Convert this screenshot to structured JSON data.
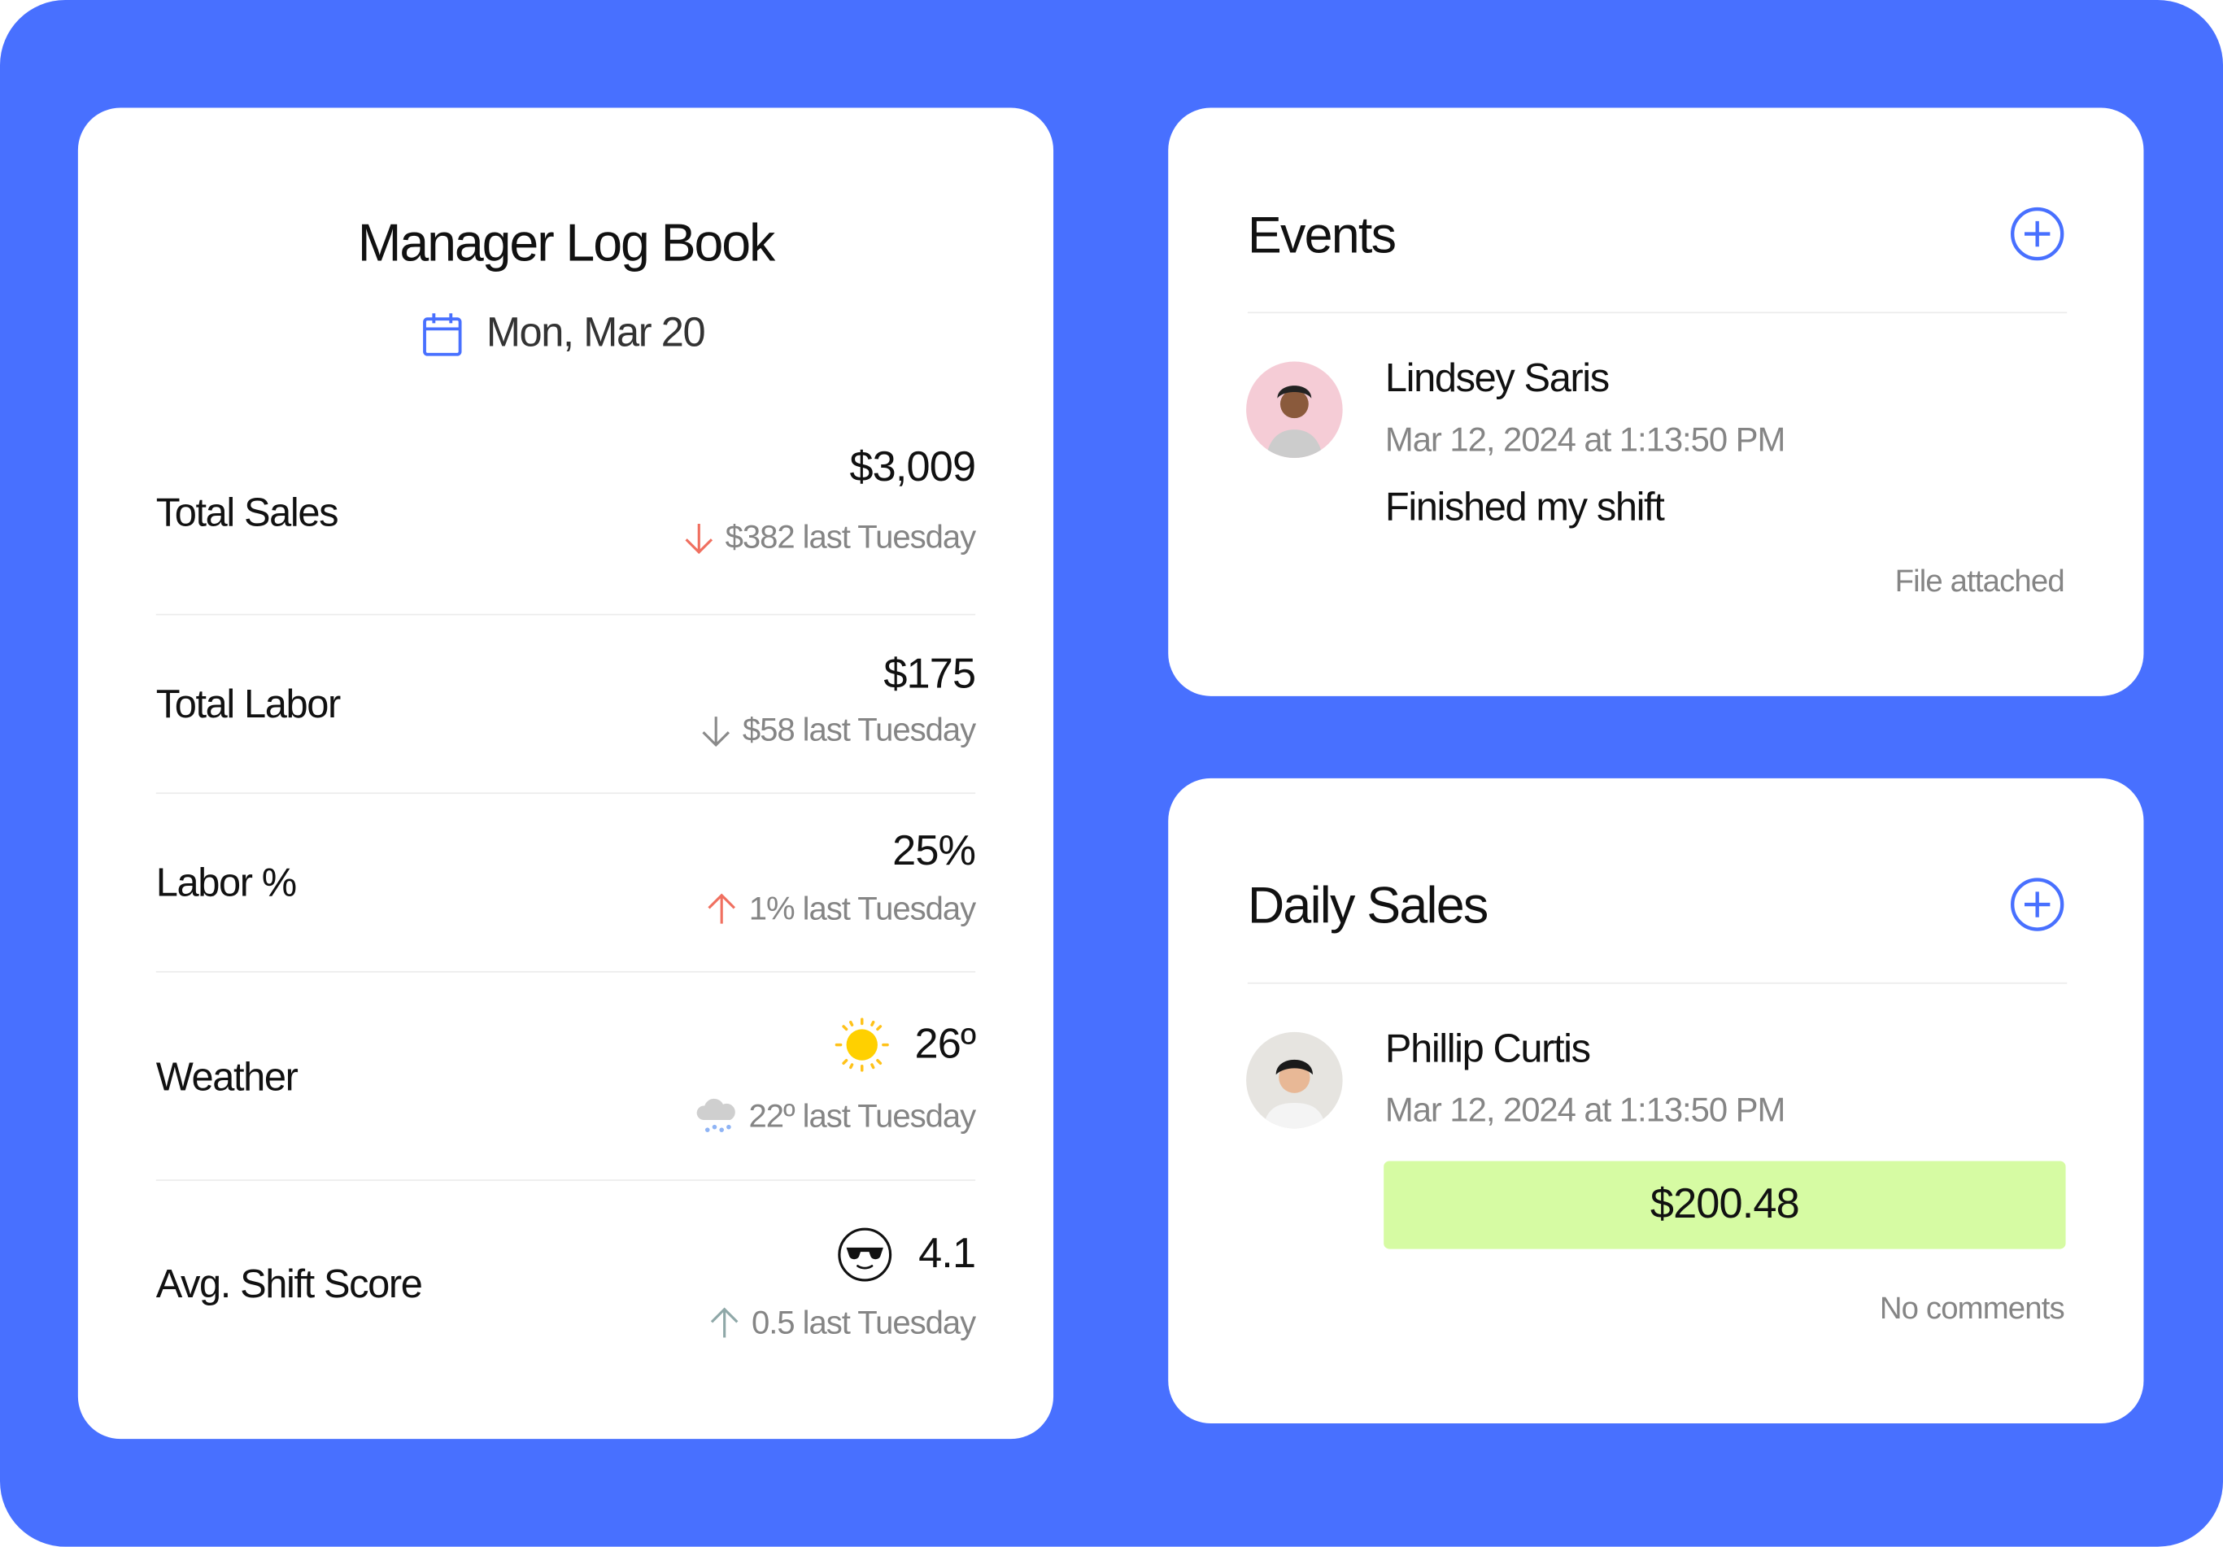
{
  "logbook": {
    "title": "Manager Log Book",
    "date": "Mon, Mar 20",
    "rows": [
      {
        "label": "Total Sales",
        "value": "$3,009",
        "comparison": "$382 last Tuesday",
        "trend": "down",
        "trend_color": "#F07060"
      },
      {
        "label": "Total Labor",
        "value": "$175",
        "comparison": "$58 last Tuesday",
        "trend": "down",
        "trend_color": "#8a8a8a"
      },
      {
        "label": "Labor %",
        "value": "25%",
        "comparison": "1% last Tuesday",
        "trend": "up",
        "trend_color": "#F07060"
      },
      {
        "label": "Weather",
        "value": "26º",
        "comparison": "22º last Tuesday",
        "icon": "sun-icon",
        "comparison_icon": "rain-cloud-icon"
      },
      {
        "label": "Avg. Shift Score",
        "value": "4.1",
        "comparison": "0.5 last Tuesday",
        "icon": "sunglasses-face-icon",
        "trend": "up",
        "trend_color": "#8fa8a8"
      }
    ]
  },
  "events": {
    "title": "Events",
    "entry": {
      "name": "Lindsey Saris",
      "timestamp": "Mar 12, 2024 at 1:13:50 PM",
      "message": "Finished my shift",
      "note": "File attached"
    }
  },
  "daily_sales": {
    "title": "Daily Sales",
    "entry": {
      "name": "Phillip Curtis",
      "timestamp": "Mar 12, 2024 at 1:13:50 PM",
      "amount": "$200.48",
      "note": "No comments"
    }
  },
  "colors": {
    "background": "#4870FF",
    "accent": "#4870FF",
    "amount_bg": "#D6FBA3",
    "negative": "#F07060"
  }
}
